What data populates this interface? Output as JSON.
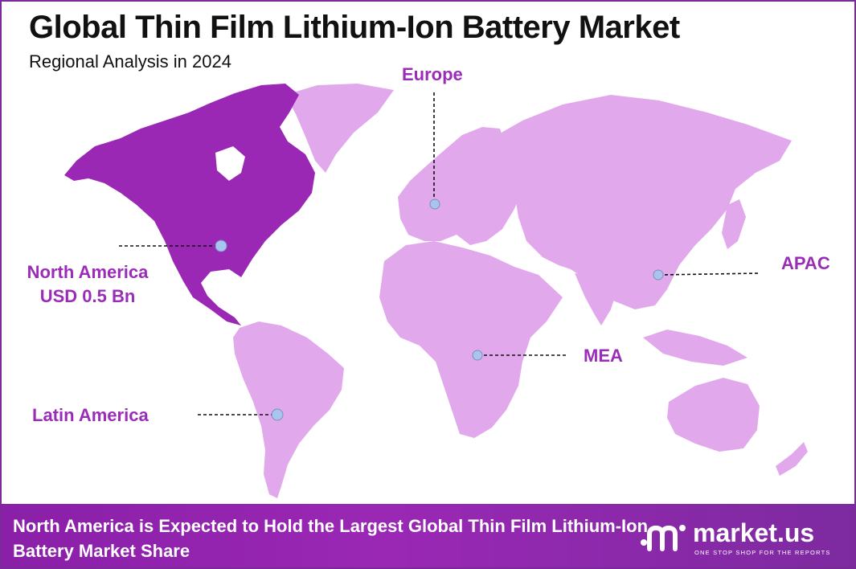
{
  "header": {
    "title": "Global Thin Film Lithium-Ion Battery Market",
    "subtitle": "Regional Analysis in 2024"
  },
  "colors": {
    "highlight_region": "#9b27b5",
    "other_regions": "#e2a8ec",
    "label": "#9b2cb8",
    "marker": "#a9c4ee",
    "footer_bg": "#8a1fa8"
  },
  "regions": [
    {
      "id": "north-america",
      "name": "North America",
      "value": "USD 0.5 Bn",
      "highlighted": true
    },
    {
      "id": "europe",
      "name": "Europe"
    },
    {
      "id": "apac",
      "name": "APAC"
    },
    {
      "id": "mea",
      "name": "MEA"
    },
    {
      "id": "latin-america",
      "name": "Latin America"
    }
  ],
  "footer": {
    "text": "North America is Expected to Hold the Largest Global Thin Film Lithium-Ion Battery Market Share",
    "brand_name": "market.us",
    "brand_tagline": "ONE STOP SHOP FOR THE REPORTS"
  }
}
